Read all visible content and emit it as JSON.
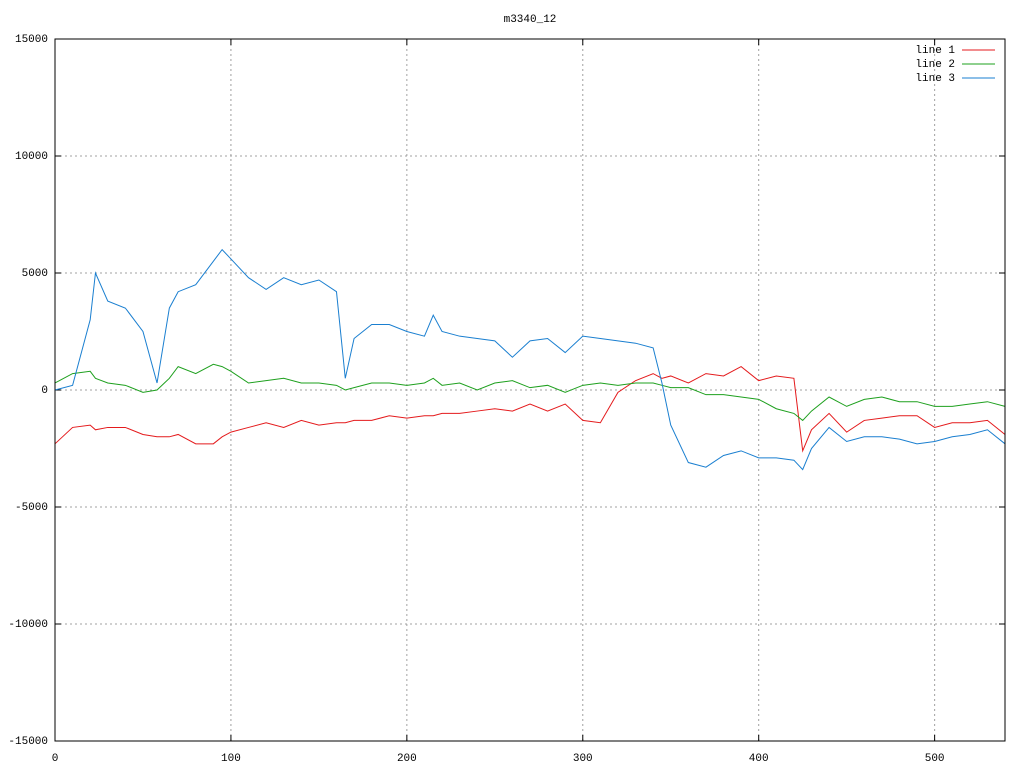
{
  "chart_data": {
    "type": "line",
    "title": "m3340_12",
    "x": [
      0,
      10,
      20,
      23,
      30,
      40,
      50,
      58,
      65,
      70,
      80,
      90,
      95,
      100,
      110,
      120,
      130,
      140,
      150,
      160,
      165,
      170,
      180,
      190,
      200,
      210,
      215,
      220,
      230,
      240,
      250,
      260,
      270,
      280,
      290,
      300,
      310,
      320,
      330,
      340,
      345,
      350,
      360,
      370,
      380,
      390,
      400,
      410,
      420,
      425,
      430,
      440,
      450,
      460,
      470,
      480,
      490,
      500,
      510,
      520,
      530,
      540
    ],
    "series": [
      {
        "name": "line 1",
        "color": "#e41a1c",
        "values": [
          -2300,
          -1600,
          -1500,
          -1700,
          -1600,
          -1600,
          -1900,
          -2000,
          -2000,
          -1900,
          -2300,
          -2300,
          -2000,
          -1800,
          -1600,
          -1400,
          -1600,
          -1300,
          -1500,
          -1400,
          -1400,
          -1300,
          -1300,
          -1100,
          -1200,
          -1100,
          -1100,
          -1000,
          -1000,
          -900,
          -800,
          -900,
          -600,
          -900,
          -600,
          -1300,
          -1400,
          -100,
          400,
          700,
          500,
          600,
          300,
          700,
          600,
          1000,
          400,
          600,
          500,
          -2600,
          -1700,
          -1000,
          -1800,
          -1300,
          -1200,
          -1100,
          -1100,
          -1600,
          -1400,
          -1400,
          -1300,
          -1900
        ]
      },
      {
        "name": "line 2",
        "color": "#1ea01e",
        "values": [
          300,
          700,
          800,
          500,
          300,
          200,
          -100,
          0,
          500,
          1000,
          700,
          1100,
          1000,
          800,
          300,
          400,
          500,
          300,
          300,
          200,
          0,
          100,
          300,
          300,
          200,
          300,
          500,
          200,
          300,
          0,
          300,
          400,
          100,
          200,
          -100,
          200,
          300,
          200,
          300,
          300,
          200,
          100,
          100,
          -200,
          -200,
          -300,
          -400,
          -800,
          -1000,
          -1300,
          -900,
          -300,
          -700,
          -400,
          -300,
          -500,
          -500,
          -700,
          -700,
          -600,
          -500,
          -700
        ]
      },
      {
        "name": "line 3",
        "color": "#1a7fd0",
        "values": [
          0,
          200,
          3000,
          5000,
          3800,
          3500,
          2500,
          300,
          3500,
          4200,
          4500,
          5500,
          6000,
          5600,
          4800,
          4300,
          4800,
          4500,
          4700,
          4200,
          500,
          2200,
          2800,
          2800,
          2500,
          2300,
          3200,
          2500,
          2300,
          2200,
          2100,
          1400,
          2100,
          2200,
          1600,
          2300,
          2200,
          2100,
          2000,
          1800,
          300,
          -1500,
          -3100,
          -3300,
          -2800,
          -2600,
          -2900,
          -2900,
          -3000,
          -3400,
          -2500,
          -1600,
          -2200,
          -2000,
          -2000,
          -2100,
          -2300,
          -2200,
          -2000,
          -1900,
          -1700,
          -2300
        ]
      }
    ],
    "xlim": [
      0,
      540
    ],
    "xticks": [
      0,
      100,
      200,
      300,
      400,
      500
    ],
    "ylim": [
      -15000,
      15000
    ],
    "yticks": [
      -15000,
      -10000,
      -5000,
      0,
      5000,
      10000,
      15000
    ],
    "grid": true,
    "legend": "top-right"
  }
}
